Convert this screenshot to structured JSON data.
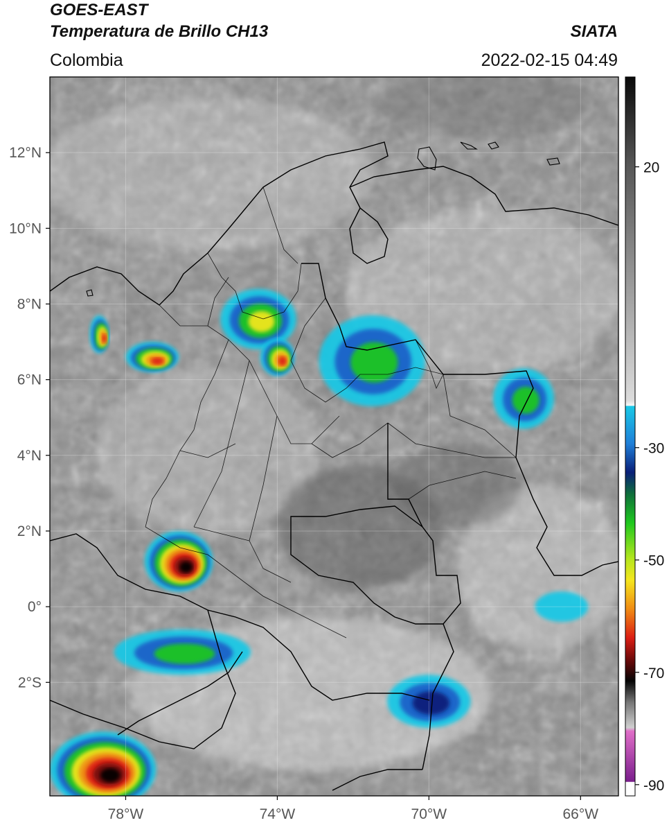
{
  "header": {
    "title": "GOES-EAST",
    "subtitle": "Temperatura de Brillo CH13",
    "region": "Colombia",
    "organization": "SIATA",
    "timestamp": "2022-02-15 04:49"
  },
  "map": {
    "lon_range": [
      -80,
      -65
    ],
    "lat_range": [
      -5,
      14
    ],
    "lat_ticks": [
      {
        "value": 12,
        "label": "12°N"
      },
      {
        "value": 10,
        "label": "10°N"
      },
      {
        "value": 8,
        "label": "8°N"
      },
      {
        "value": 6,
        "label": "6°N"
      },
      {
        "value": 4,
        "label": "4°N"
      },
      {
        "value": 2,
        "label": "2°N"
      },
      {
        "value": 0,
        "label": "0°"
      },
      {
        "value": -2,
        "label": "2°S"
      }
    ],
    "lon_ticks": [
      {
        "value": -78,
        "label": "78°W"
      },
      {
        "value": -74,
        "label": "74°W"
      },
      {
        "value": -70,
        "label": "70°W"
      },
      {
        "value": -66,
        "label": "66°W"
      }
    ],
    "grid": true
  },
  "colorbar": {
    "ticks": [
      {
        "value": 20,
        "label": "20"
      },
      {
        "value": -30,
        "label": "-30"
      },
      {
        "value": -50,
        "label": "-50"
      },
      {
        "value": -70,
        "label": "-70"
      },
      {
        "value": -90,
        "label": "-90"
      }
    ],
    "colors": {
      "warm_top": "#111111",
      "gray_mid": "#9a9a9a",
      "white": "#f4f4f4",
      "cyan": "#19c8e6",
      "blue": "#1f5fc8",
      "navy": "#0a1f78",
      "green": "#1ec81e",
      "yellow": "#f5e61e",
      "orange": "#f08c14",
      "red": "#dc1e14",
      "darkred": "#6e0a0a",
      "black": "#050505",
      "pink": "#e06ec8",
      "purple": "#7a1e8c"
    }
  },
  "clouds": [
    {
      "name": "cloud-antioquia",
      "lon": -74.5,
      "lat": 7.6,
      "rx": 1.0,
      "ry": 0.8,
      "core": "yellow"
    },
    {
      "name": "cloud-antioquia-south",
      "lon": -74.0,
      "lat": 6.6,
      "rx": 0.45,
      "ry": 0.5,
      "core": "red"
    },
    {
      "name": "cloud-choco",
      "lon": -77.3,
      "lat": 6.6,
      "rx": 0.7,
      "ry": 0.4,
      "core": "red"
    },
    {
      "name": "cloud-panama",
      "lon": -78.7,
      "lat": 7.2,
      "rx": 0.25,
      "ry": 0.5,
      "core": "red"
    },
    {
      "name": "cloud-narino",
      "lon": -76.6,
      "lat": 1.2,
      "rx": 0.9,
      "ry": 0.8,
      "core": "black"
    },
    {
      "name": "cloud-peru",
      "lon": -78.6,
      "lat": -4.3,
      "rx": 1.4,
      "ry": 1.0,
      "core": "black"
    },
    {
      "name": "cloud-amazon-south",
      "lon": -70.0,
      "lat": -2.5,
      "rx": 1.1,
      "ry": 0.7,
      "core": "blue"
    },
    {
      "name": "cloud-ecuador",
      "lon": -76.5,
      "lat": -1.2,
      "rx": 1.8,
      "ry": 0.6,
      "core": "green"
    },
    {
      "name": "cloud-venezuela-east",
      "lon": -67.5,
      "lat": 5.5,
      "rx": 0.8,
      "ry": 0.8,
      "core": "green"
    },
    {
      "name": "cloud-brazil-east",
      "lon": -66.5,
      "lat": 0.0,
      "rx": 0.7,
      "ry": 0.4,
      "core": "cyan"
    },
    {
      "name": "cloud-santander",
      "lon": -71.5,
      "lat": 6.5,
      "rx": 1.4,
      "ry": 1.2,
      "core": "green"
    }
  ]
}
